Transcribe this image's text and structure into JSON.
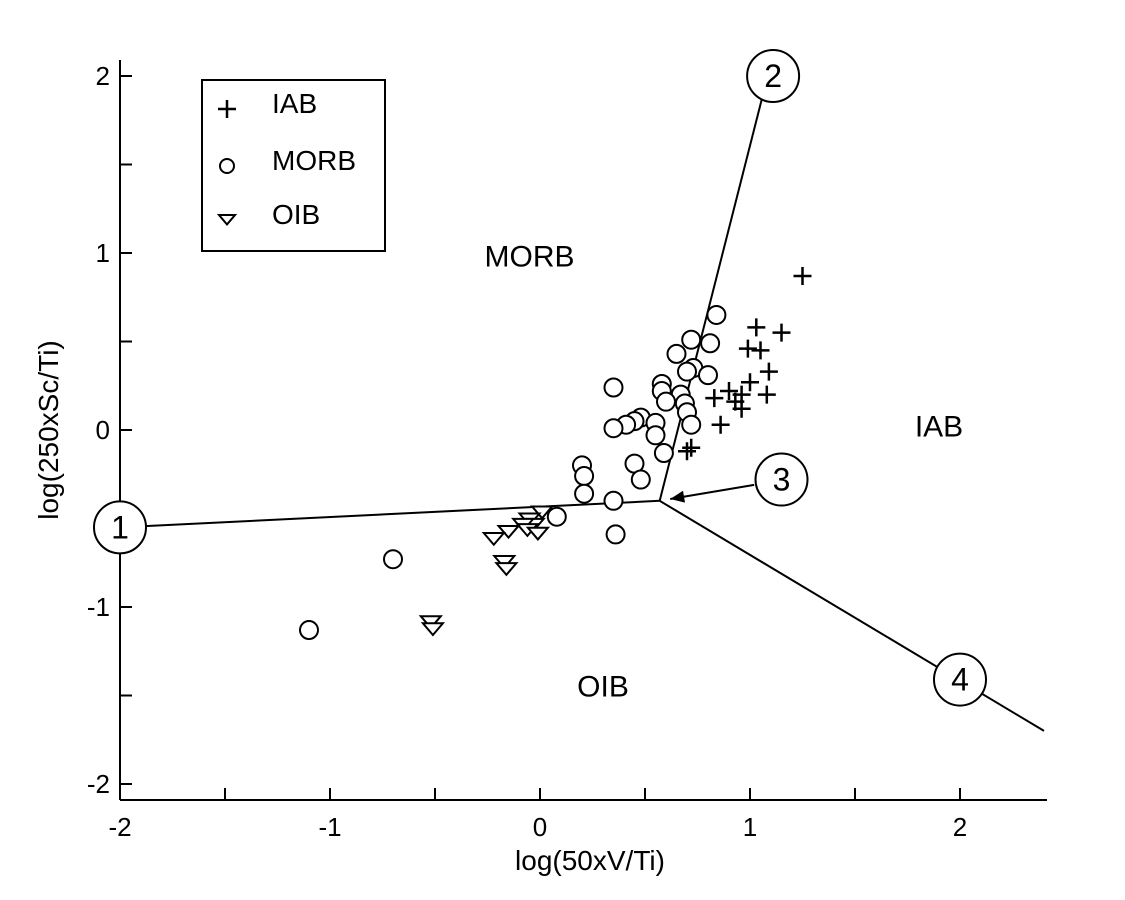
{
  "chart_data": {
    "type": "scatter",
    "xlabel": "log(50xV/Ti)",
    "ylabel": "log(250xSc/Ti)",
    "xlim": [
      -2,
      2.4
    ],
    "ylim": [
      -2.1,
      2.1
    ],
    "x_ticks": [
      -2,
      -1,
      0,
      1,
      2
    ],
    "x_tick_labels": [
      "-2",
      "-1",
      "0",
      "1",
      "2"
    ],
    "y_ticks": [
      -2,
      -1,
      0,
      1,
      2
    ],
    "y_tick_labels": [
      "-2",
      "-1",
      "0",
      "1",
      "2"
    ],
    "x_minor_ticks": [
      -1.5,
      -0.5,
      0.5,
      1.5
    ],
    "y_minor_ticks": [
      -1.5,
      -0.5,
      0.5,
      1.5
    ],
    "grid": false,
    "legend": {
      "position": "top-left",
      "entries": [
        {
          "name": "IAB",
          "marker": "plus"
        },
        {
          "name": "MORB",
          "marker": "circle"
        },
        {
          "name": "OIB",
          "marker": "triangle-down"
        }
      ]
    },
    "region_labels": [
      {
        "text": "MORB",
        "x": -0.05,
        "y": 0.98
      },
      {
        "text": "IAB",
        "x": 1.9,
        "y": 0.02
      },
      {
        "text": "OIB",
        "x": 0.3,
        "y": -1.45
      }
    ],
    "boundaries": [
      {
        "name": "line-1-3",
        "points": [
          [
            -2.0,
            -0.55
          ],
          [
            0.57,
            -0.4
          ]
        ]
      },
      {
        "name": "line-3-2",
        "points": [
          [
            0.57,
            -0.4
          ],
          [
            1.08,
            1.98
          ]
        ]
      },
      {
        "name": "line-3-4",
        "points": [
          [
            0.57,
            -0.4
          ],
          [
            2.4,
            -1.7
          ]
        ]
      }
    ],
    "markers": [
      {
        "label": "1",
        "x": -2.0,
        "y": -0.55
      },
      {
        "label": "2",
        "x": 1.11,
        "y": 2.0
      },
      {
        "label": "3",
        "x": 1.15,
        "y": -0.28
      },
      {
        "label": "4",
        "x": 2.0,
        "y": -1.41
      }
    ],
    "arrow": {
      "from": [
        1.02,
        -0.31
      ],
      "to": [
        0.62,
        -0.39
      ]
    },
    "series": [
      {
        "name": "IAB",
        "marker": "plus",
        "points": [
          [
            1.25,
            0.87
          ],
          [
            1.03,
            0.58
          ],
          [
            1.15,
            0.55
          ],
          [
            0.99,
            0.46
          ],
          [
            1.05,
            0.45
          ],
          [
            1.09,
            0.33
          ],
          [
            1.0,
            0.27
          ],
          [
            0.9,
            0.22
          ],
          [
            0.96,
            0.2
          ],
          [
            1.08,
            0.2
          ],
          [
            0.93,
            0.16
          ],
          [
            0.96,
            0.12
          ],
          [
            0.86,
            0.03
          ],
          [
            0.72,
            -0.1
          ],
          [
            0.7,
            -0.12
          ],
          [
            0.83,
            0.18
          ]
        ]
      },
      {
        "name": "MORB",
        "marker": "circle",
        "points": [
          [
            0.84,
            0.65
          ],
          [
            0.72,
            0.51
          ],
          [
            0.81,
            0.49
          ],
          [
            0.65,
            0.43
          ],
          [
            0.73,
            0.35
          ],
          [
            0.7,
            0.33
          ],
          [
            0.8,
            0.31
          ],
          [
            0.58,
            0.26
          ],
          [
            0.35,
            0.24
          ],
          [
            0.58,
            0.22
          ],
          [
            0.67,
            0.2
          ],
          [
            0.6,
            0.16
          ],
          [
            0.69,
            0.15
          ],
          [
            0.7,
            0.1
          ],
          [
            0.48,
            0.07
          ],
          [
            0.45,
            0.05
          ],
          [
            0.55,
            0.04
          ],
          [
            0.72,
            0.03
          ],
          [
            0.41,
            0.03
          ],
          [
            0.35,
            0.01
          ],
          [
            0.55,
            -0.03
          ],
          [
            0.59,
            -0.13
          ],
          [
            0.45,
            -0.19
          ],
          [
            0.2,
            -0.2
          ],
          [
            0.21,
            -0.26
          ],
          [
            0.48,
            -0.28
          ],
          [
            0.21,
            -0.36
          ],
          [
            0.35,
            -0.4
          ],
          [
            0.08,
            -0.49
          ],
          [
            0.36,
            -0.59
          ],
          [
            -0.7,
            -0.73
          ],
          [
            -1.1,
            -1.13
          ]
        ]
      },
      {
        "name": "OIB",
        "marker": "triangle-down",
        "points": [
          [
            0.01,
            -0.46
          ],
          [
            -0.05,
            -0.5
          ],
          [
            -0.03,
            -0.53
          ],
          [
            -0.08,
            -0.53
          ],
          [
            -0.06,
            -0.56
          ],
          [
            -0.01,
            -0.58
          ],
          [
            -0.15,
            -0.57
          ],
          [
            -0.22,
            -0.61
          ],
          [
            -0.17,
            -0.74
          ],
          [
            -0.16,
            -0.78
          ],
          [
            -0.52,
            -1.08
          ],
          [
            -0.51,
            -1.12
          ]
        ]
      }
    ]
  }
}
